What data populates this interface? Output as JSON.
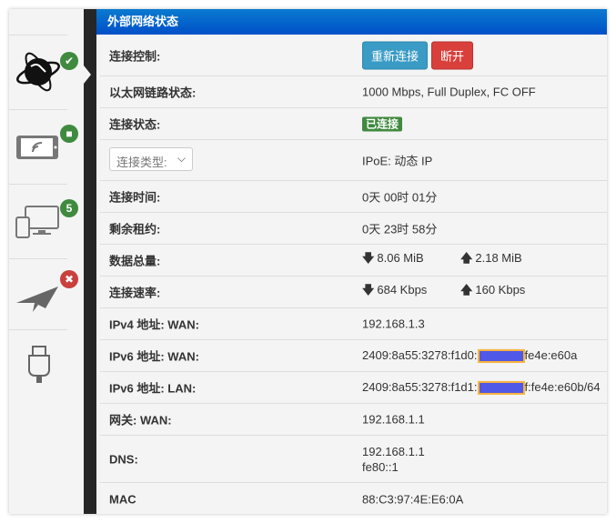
{
  "sidebar": {
    "items": [
      {
        "icon": "globe-icon",
        "badge_icon": "check-icon",
        "badge_color": "#3f8a3f"
      },
      {
        "icon": "wifi-tablet-icon",
        "badge_icon": "lock-icon",
        "badge_color": "#3f8a3f"
      },
      {
        "icon": "devices-icon",
        "badge": "5",
        "badge_color": "#3f8a3f"
      },
      {
        "icon": "paper-plane-icon",
        "badge_icon": "close-icon",
        "badge_color": "#c9403c"
      },
      {
        "icon": "usb-icon"
      }
    ]
  },
  "header": {
    "title": "外部网络状态"
  },
  "rows": {
    "control": {
      "label": "连接控制:",
      "reconnect": "重新连接",
      "disconnect": "断开"
    },
    "link": {
      "label": "以太网链路状态:",
      "value": "1000 Mbps, Full Duplex, FC OFF"
    },
    "status": {
      "label": "连接状态:",
      "value": "已连接"
    },
    "type": {
      "select": "连接类型:",
      "value": "IPoE: 动态 IP"
    },
    "uptime": {
      "label": "连接时间:",
      "value": "0天 00时 01分"
    },
    "lease": {
      "label": "剩余租约:",
      "value": "0天 23时 58分"
    },
    "total": {
      "label": "数据总量:",
      "down": "8.06 MiB",
      "up": "2.18 MiB"
    },
    "rate": {
      "label": "连接速率:",
      "down": "684 Kbps",
      "up": "160 Kbps"
    },
    "ipv4": {
      "label": "IPv4 地址: WAN:",
      "value": "192.168.1.3"
    },
    "ipv6wan": {
      "label": "IPv6 地址: WAN:",
      "prefix": "2409:8a55:3278:f1d0:",
      "suffix": "fe4e:e60a"
    },
    "ipv6lan": {
      "label": "IPv6 地址: LAN:",
      "prefix": "2409:8a55:3278:f1d1:",
      "suffix": "f:fe4e:e60b/64"
    },
    "gateway": {
      "label": "网关: WAN:",
      "value": "192.168.1.1"
    },
    "dns": {
      "label": "DNS:",
      "v1": "192.168.1.1",
      "v2": "fe80::1"
    },
    "mac": {
      "label": "MAC",
      "value": "88:C3:97:4E:E6:0A"
    }
  }
}
